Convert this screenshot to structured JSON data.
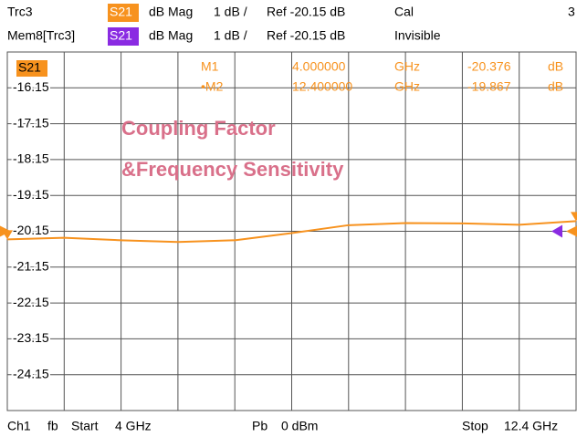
{
  "header": {
    "row1": [
      "S21",
      "dB Mag",
      "1 dB /",
      "Ref -20.15 dB",
      "Cal",
      "3"
    ],
    "row2": [
      "Mem8[Trc3]",
      "S21",
      "dB Mag",
      "1 dB /",
      "Ref -20.15 dB",
      "Invisible"
    ]
  },
  "footer": [
    "Ch1",
    "fb",
    "Start",
    "4 GHz",
    "Pb",
    "0 dBm",
    "Stop",
    "12.4 GHz"
  ],
  "chart_data": {
    "type": "line",
    "trace_label": "S21",
    "annotations": [
      "Coupling Factor",
      "&Frequency Sensitivity"
    ],
    "x": [
      4.0,
      4.84,
      5.68,
      6.52,
      7.36,
      8.2,
      9.04,
      9.88,
      10.72,
      11.56,
      12.4
    ],
    "series": [
      {
        "name": "Trc3",
        "color": "#f7921e",
        "values": [
          -20.376,
          -20.33,
          -20.4,
          -20.45,
          -20.4,
          -20.2,
          -19.98,
          -19.92,
          -19.93,
          -19.97,
          -19.867
        ]
      }
    ],
    "markers": [
      {
        "name": "M1",
        "x": 4,
        "x_label": "4.000000",
        "x_unit": "GHz",
        "value": -20.376,
        "value_label": "-20.376",
        "unit": "dB"
      },
      {
        "name": "•M2",
        "x": 12.4,
        "x_label": "12.400000",
        "x_unit": "GHz",
        "value": -19.867,
        "value_label": "-19.867",
        "unit": "dB"
      }
    ],
    "xlim": [
      4,
      12.4
    ],
    "ylim": [
      -25.15,
      -15.15
    ],
    "yticks": [
      -16.15,
      -17.15,
      -18.15,
      -19.15,
      -20.15,
      -21.15,
      -22.15,
      -23.15,
      -24.15
    ],
    "grid": true
  }
}
